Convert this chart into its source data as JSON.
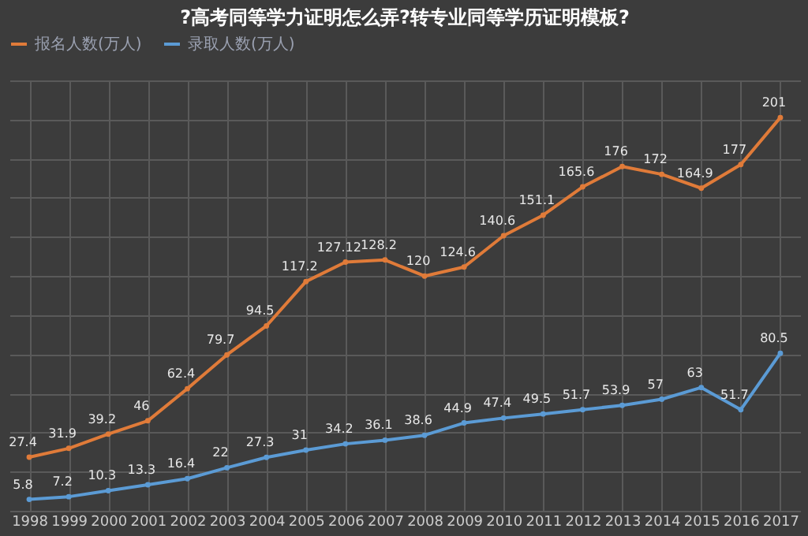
{
  "chart_data": {
    "type": "line",
    "title": "?高考同等学力证明怎么弄?转专业同等学历证明模板?",
    "categories": [
      "1998",
      "1999",
      "2000",
      "2001",
      "2002",
      "2003",
      "2004",
      "2005",
      "2006",
      "2007",
      "2008",
      "2009",
      "2010",
      "2011",
      "2012",
      "2013",
      "2014",
      "2015",
      "2016",
      "2017"
    ],
    "series": [
      {
        "name": "报名人数(万人)",
        "color": "#e07b39",
        "values": [
          27.4,
          31.9,
          39.2,
          46,
          62.4,
          79.7,
          94.5,
          117.2,
          127.12,
          128.2,
          120,
          124.6,
          140.6,
          151.1,
          165.6,
          176,
          172,
          164.9,
          177,
          201
        ]
      },
      {
        "name": "录取人数(万人)",
        "color": "#5b9bd5",
        "values": [
          5.8,
          7.2,
          10.3,
          13.3,
          16.4,
          22,
          27.3,
          31,
          34.2,
          36.1,
          38.6,
          44.9,
          47.4,
          49.5,
          51.7,
          53.9,
          57,
          63,
          51.7,
          80.5
        ]
      }
    ],
    "data_labels": true,
    "legend": "top",
    "grid": true,
    "tick_labels": "x",
    "marker": "circle",
    "line_style": "solid"
  }
}
